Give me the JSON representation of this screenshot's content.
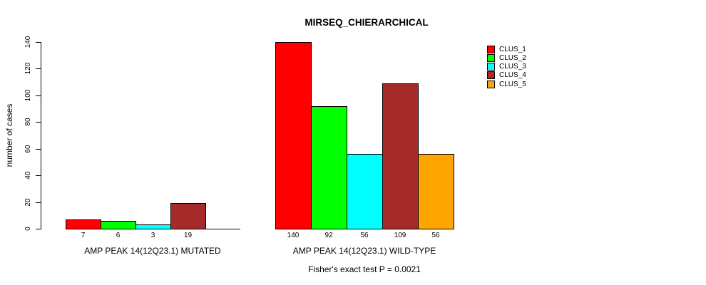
{
  "title": "MIRSEQ_CHIERARCHICAL",
  "y_axis": {
    "label": "number of cases"
  },
  "footer": {
    "stat_text": "Fisher's exact test P = 0.0021"
  },
  "legend": {
    "items": [
      {
        "label": "CLUS_1",
        "color": "#FF0000"
      },
      {
        "label": "CLUS_2",
        "color": "#00FF00"
      },
      {
        "label": "CLUS_3",
        "color": "#00FFFF"
      },
      {
        "label": "CLUS_4",
        "color": "#A52A2A"
      },
      {
        "label": "CLUS_5",
        "color": "#FFA500"
      }
    ]
  },
  "chart_data": {
    "type": "bar",
    "title": "MIRSEQ_CHIERARCHICAL",
    "xlabel": "",
    "ylabel": "number of cases",
    "ylim": [
      0,
      140
    ],
    "yticks": [
      0,
      20,
      40,
      60,
      80,
      100,
      120,
      140
    ],
    "grid": false,
    "legend_position": "top-right",
    "groups": [
      {
        "label": "AMP PEAK 14(12Q23.1) MUTATED"
      },
      {
        "label": "AMP PEAK 14(12Q23.1) WILD-TYPE"
      }
    ],
    "series": [
      {
        "name": "CLUS_1",
        "color": "#FF0000",
        "values": [
          7,
          140
        ]
      },
      {
        "name": "CLUS_2",
        "color": "#00FF00",
        "values": [
          6,
          92
        ]
      },
      {
        "name": "CLUS_3",
        "color": "#00FFFF",
        "values": [
          3,
          56
        ]
      },
      {
        "name": "CLUS_4",
        "color": "#A52A2A",
        "values": [
          19,
          109
        ]
      },
      {
        "name": "CLUS_5",
        "color": "#FFA500",
        "values": [
          0,
          56
        ]
      }
    ],
    "bar_value_labels": {
      "group_1": [
        "7",
        "6",
        "3",
        "19"
      ],
      "group_2": [
        "140",
        "92",
        "56",
        "109",
        "56"
      ]
    },
    "annotation": "Fisher's exact test P = 0.0021"
  }
}
